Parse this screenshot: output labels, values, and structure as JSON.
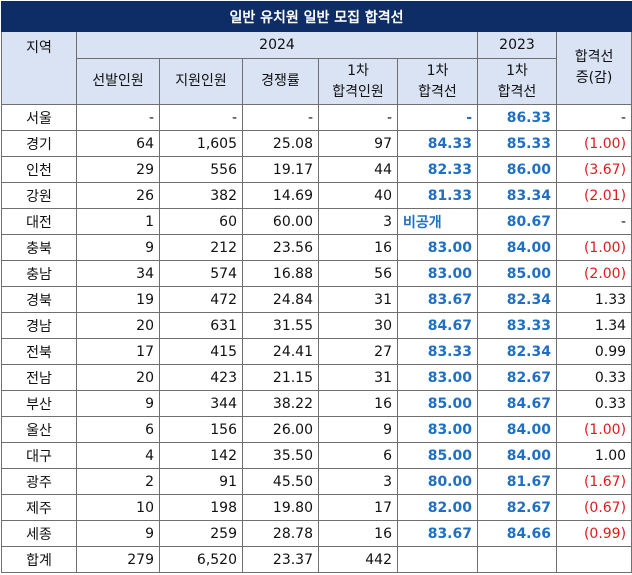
{
  "title": "일반 유치원 일반 모집 합격선",
  "headers": {
    "region": "지역",
    "year_2024": "2024",
    "year_2023": "2023",
    "selected": "선발인원",
    "applicants": "지원인원",
    "competition": "경쟁률",
    "first_pass_count_line1": "1차",
    "first_pass_count_line2": "합격인원",
    "first_cutoff_2024_line1": "1차",
    "first_cutoff_2024_line2": "합격선",
    "first_cutoff_2023_line1": "1차",
    "first_cutoff_2023_line2": "합격선",
    "change_line1": "합격선",
    "change_line2": "증(감)"
  },
  "rows": [
    {
      "region": "서울",
      "selected": "-",
      "applicants": "-",
      "competition": "-",
      "passed": "-",
      "cutoff2024": "-",
      "cutoff2023": "86.33",
      "change": "-",
      "change_color": "plain"
    },
    {
      "region": "경기",
      "selected": "64",
      "applicants": "1,605",
      "competition": "25.08",
      "passed": "97",
      "cutoff2024": "84.33",
      "cutoff2023": "85.33",
      "change": "(1.00)",
      "change_color": "red"
    },
    {
      "region": "인천",
      "selected": "29",
      "applicants": "556",
      "competition": "19.17",
      "passed": "44",
      "cutoff2024": "82.33",
      "cutoff2023": "86.00",
      "change": "(3.67)",
      "change_color": "red"
    },
    {
      "region": "강원",
      "selected": "26",
      "applicants": "382",
      "competition": "14.69",
      "passed": "40",
      "cutoff2024": "81.33",
      "cutoff2023": "83.34",
      "change": "(2.01)",
      "change_color": "red"
    },
    {
      "region": "대전",
      "selected": "1",
      "applicants": "60",
      "competition": "60.00",
      "passed": "3",
      "cutoff2024": "비공개",
      "cutoff2023": "80.67",
      "change": "-",
      "change_color": "plain"
    },
    {
      "region": "충북",
      "selected": "9",
      "applicants": "212",
      "competition": "23.56",
      "passed": "16",
      "cutoff2024": "83.00",
      "cutoff2023": "84.00",
      "change": "(1.00)",
      "change_color": "red"
    },
    {
      "region": "충남",
      "selected": "34",
      "applicants": "574",
      "competition": "16.88",
      "passed": "56",
      "cutoff2024": "83.00",
      "cutoff2023": "85.00",
      "change": "(2.00)",
      "change_color": "red"
    },
    {
      "region": "경북",
      "selected": "19",
      "applicants": "472",
      "competition": "24.84",
      "passed": "31",
      "cutoff2024": "83.67",
      "cutoff2023": "82.34",
      "change": "1.33",
      "change_color": "plain"
    },
    {
      "region": "경남",
      "selected": "20",
      "applicants": "631",
      "competition": "31.55",
      "passed": "30",
      "cutoff2024": "84.67",
      "cutoff2023": "83.33",
      "change": "1.34",
      "change_color": "plain"
    },
    {
      "region": "전북",
      "selected": "17",
      "applicants": "415",
      "competition": "24.41",
      "passed": "27",
      "cutoff2024": "83.33",
      "cutoff2023": "82.34",
      "change": "0.99",
      "change_color": "plain"
    },
    {
      "region": "전남",
      "selected": "20",
      "applicants": "423",
      "competition": "21.15",
      "passed": "31",
      "cutoff2024": "83.00",
      "cutoff2023": "82.67",
      "change": "0.33",
      "change_color": "plain"
    },
    {
      "region": "부산",
      "selected": "9",
      "applicants": "344",
      "competition": "38.22",
      "passed": "16",
      "cutoff2024": "85.00",
      "cutoff2023": "84.67",
      "change": "0.33",
      "change_color": "plain"
    },
    {
      "region": "울산",
      "selected": "6",
      "applicants": "156",
      "competition": "26.00",
      "passed": "9",
      "cutoff2024": "83.00",
      "cutoff2023": "84.00",
      "change": "(1.00)",
      "change_color": "red"
    },
    {
      "region": "대구",
      "selected": "4",
      "applicants": "142",
      "competition": "35.50",
      "passed": "6",
      "cutoff2024": "85.00",
      "cutoff2023": "84.00",
      "change": "1.00",
      "change_color": "plain"
    },
    {
      "region": "광주",
      "selected": "2",
      "applicants": "91",
      "competition": "45.50",
      "passed": "3",
      "cutoff2024": "80.00",
      "cutoff2023": "81.67",
      "change": "(1.67)",
      "change_color": "red"
    },
    {
      "region": "제주",
      "selected": "10",
      "applicants": "198",
      "competition": "19.80",
      "passed": "17",
      "cutoff2024": "82.00",
      "cutoff2023": "82.67",
      "change": "(0.67)",
      "change_color": "red"
    },
    {
      "region": "세종",
      "selected": "9",
      "applicants": "259",
      "competition": "28.78",
      "passed": "16",
      "cutoff2024": "83.67",
      "cutoff2023": "84.66",
      "change": "(0.99)",
      "change_color": "red"
    },
    {
      "region": "합계",
      "selected": "279",
      "applicants": "6,520",
      "competition": "23.37",
      "passed": "442",
      "cutoff2024": "",
      "cutoff2023": "",
      "change": "",
      "change_color": "plain"
    }
  ],
  "colors": {
    "title_bg": "#0e2d66",
    "header_bg": "#d9e3f3",
    "cutoff_blue": "#1f6fc4",
    "decrease_red": "#e01b1b"
  }
}
